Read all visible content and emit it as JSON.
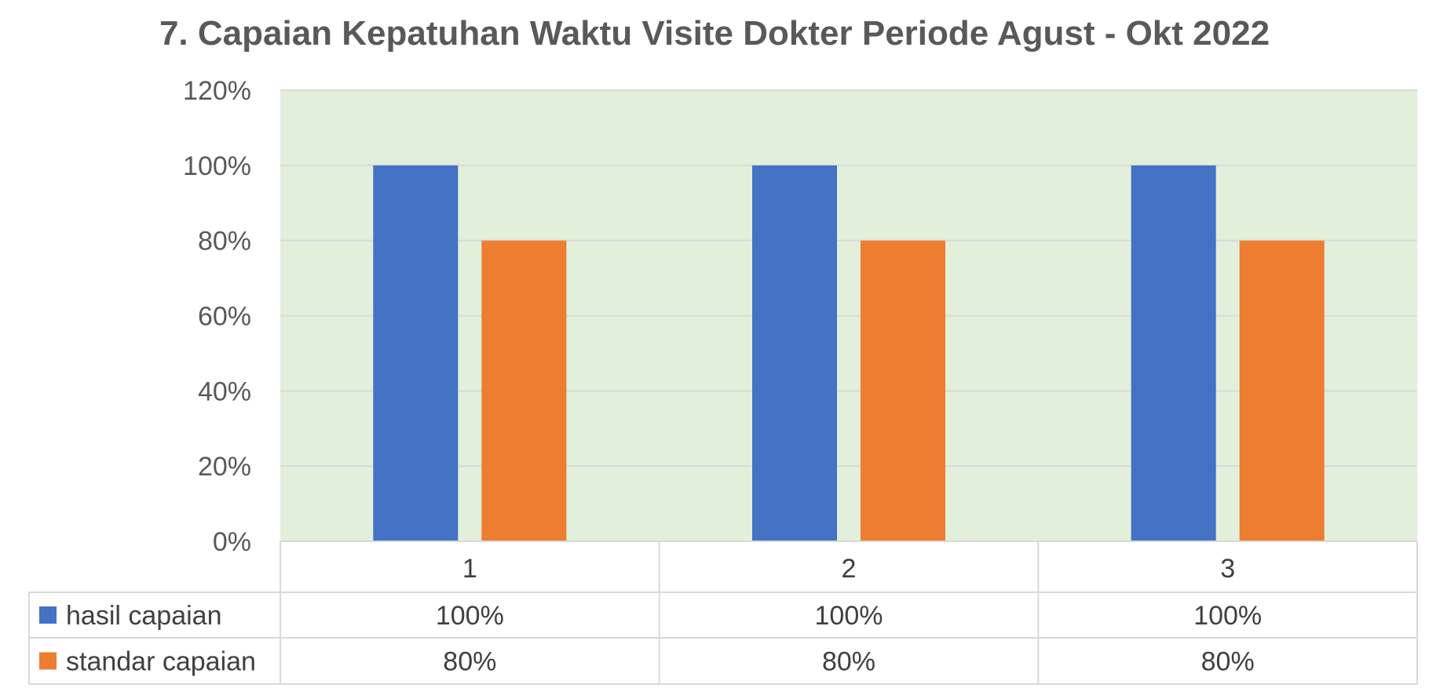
{
  "colors": {
    "plot_background": "#e2efda",
    "gridline": "#d9d9d9",
    "table_border": "#d9d9d9",
    "series_1": "#4472c4",
    "series_2": "#ed7d31"
  },
  "chart_data": {
    "type": "bar",
    "title": "7. Capaian Kepatuhan Waktu Visite Dokter Periode Agust - Okt 2022",
    "categories": [
      "1",
      "2",
      "3"
    ],
    "series": [
      {
        "name": "hasil capaian",
        "values": [
          100,
          100,
          100
        ],
        "labels": [
          "100%",
          "100%",
          "100%"
        ]
      },
      {
        "name": "standar capaian",
        "values": [
          80,
          80,
          80
        ],
        "labels": [
          "80%",
          "80%",
          "80%"
        ]
      }
    ],
    "ylim": [
      0,
      120
    ],
    "y_ticks": [
      "0%",
      "20%",
      "40%",
      "60%",
      "80%",
      "100%",
      "120%"
    ],
    "grid": true,
    "legend": "data-table-left"
  }
}
